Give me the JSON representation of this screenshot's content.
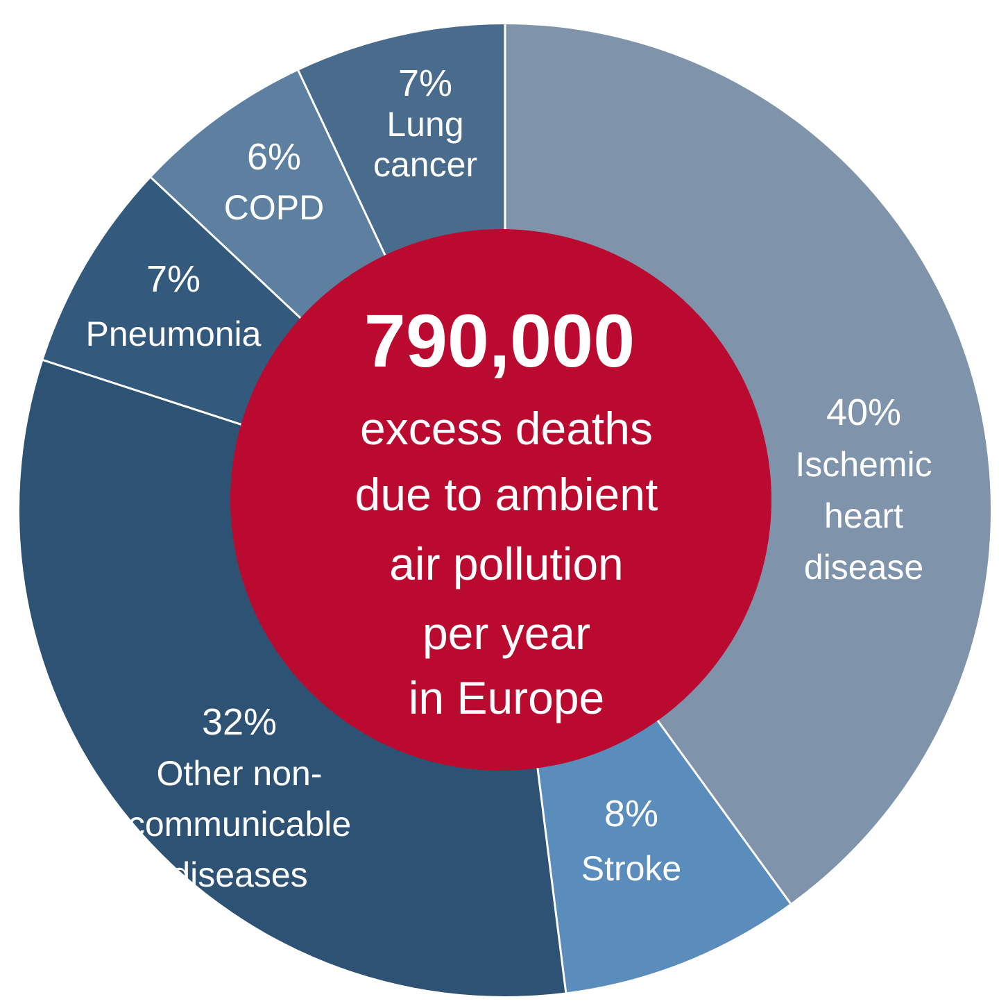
{
  "chart_data": {
    "type": "pie",
    "center": {
      "value": "790,000",
      "lines": [
        "excess deaths",
        "due to ambient",
        "air pollution",
        "per year",
        "in Europe"
      ]
    },
    "slices": [
      {
        "label": "Ischemic heart disease",
        "value": 40,
        "pct_label": "40%",
        "label_lines": [
          "Ischemic",
          "heart",
          "disease"
        ],
        "color": "#7f93ab"
      },
      {
        "label": "Stroke",
        "value": 8,
        "pct_label": "8%",
        "label_lines": [
          "Stroke"
        ],
        "color": "#5a8cbc"
      },
      {
        "label": "Other non-communicable diseases",
        "value": 32,
        "pct_label": "32%",
        "label_lines": [
          "Other non-",
          "communicable",
          "diseases"
        ],
        "color": "#2e5274"
      },
      {
        "label": "Pneumonia",
        "value": 7,
        "pct_label": "7%",
        "label_lines": [
          "Pneumonia"
        ],
        "color": "#335a7c"
      },
      {
        "label": "COPD",
        "value": 6,
        "pct_label": "6%",
        "label_lines": [
          "COPD"
        ],
        "color": "#5d7fa0"
      },
      {
        "label": "Lung cancer",
        "value": 7,
        "pct_label": "7%",
        "label_lines": [
          "Lung",
          "cancer"
        ],
        "color": "#496b8c"
      }
    ],
    "center_color": "#bb0a30",
    "separator_color": "#ffffff"
  }
}
